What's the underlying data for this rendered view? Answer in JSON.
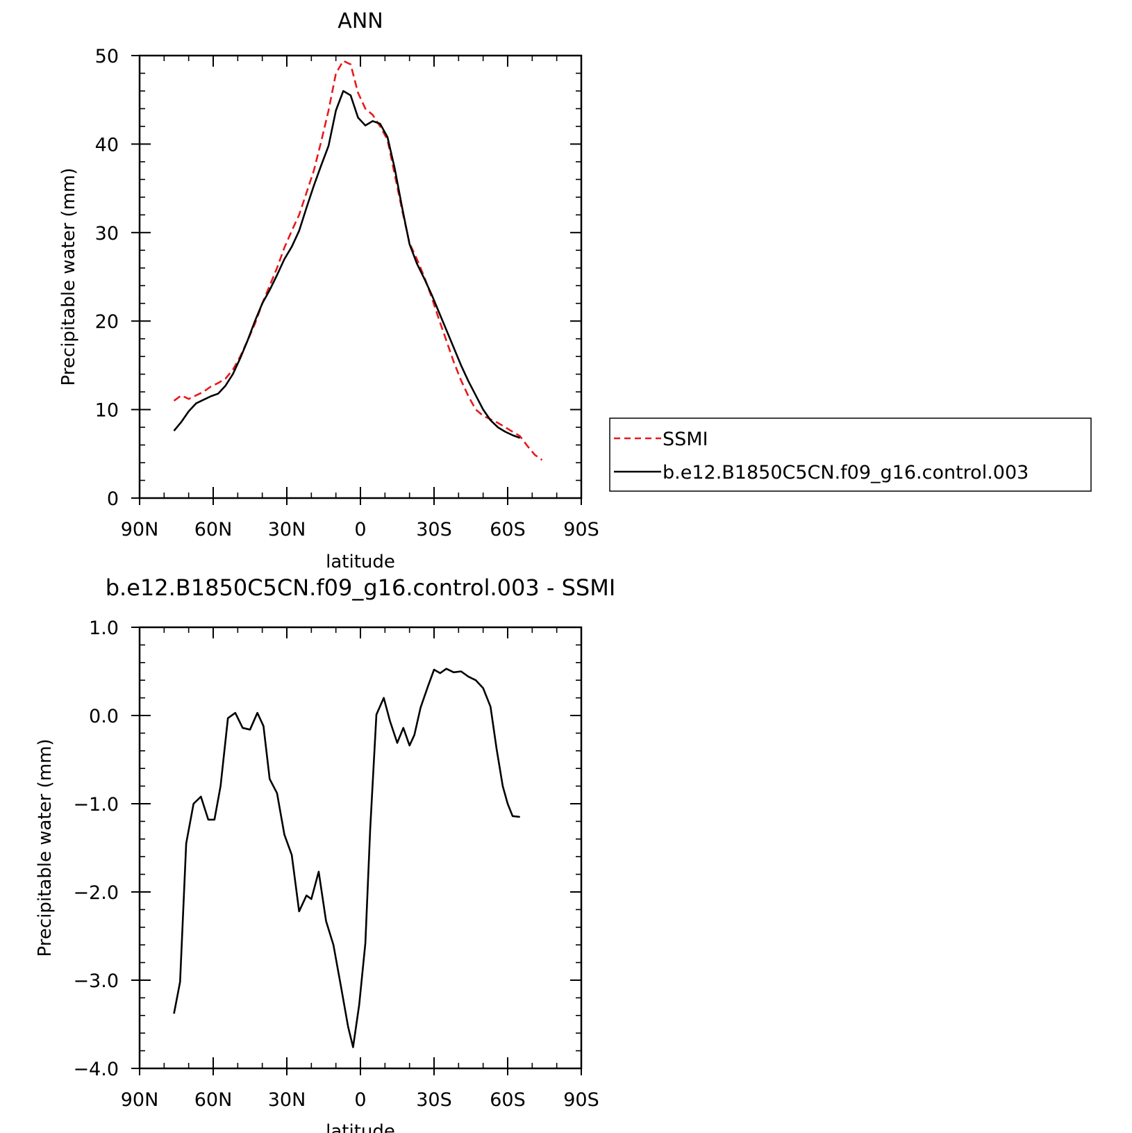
{
  "chart_data": [
    {
      "type": "line",
      "title": "ANN",
      "xlabel": "latitude",
      "ylabel": "Precipitable water (mm)",
      "xlim": [
        90,
        -90
      ],
      "ylim": [
        0,
        50
      ],
      "xticks": [
        {
          "value": 90,
          "label": "90N"
        },
        {
          "value": 60,
          "label": "60N"
        },
        {
          "value": 30,
          "label": "30N"
        },
        {
          "value": 0,
          "label": "0"
        },
        {
          "value": -30,
          "label": "30S"
        },
        {
          "value": -60,
          "label": "60S"
        },
        {
          "value": -90,
          "label": "90S"
        }
      ],
      "yticks": [
        {
          "value": 0,
          "label": "0"
        },
        {
          "value": 10,
          "label": "10"
        },
        {
          "value": 20,
          "label": "20"
        },
        {
          "value": 30,
          "label": "30"
        },
        {
          "value": 40,
          "label": "40"
        },
        {
          "value": 50,
          "label": "50"
        }
      ],
      "legend_position": "right",
      "series": [
        {
          "name": "SSMI",
          "color": "#e8191c",
          "dash": "dashed",
          "x": [
            76,
            73,
            70,
            67,
            64,
            61,
            58,
            55,
            52,
            49,
            46,
            43,
            40,
            37,
            34,
            31,
            28,
            25,
            22,
            19,
            16,
            13,
            10,
            7,
            4,
            1,
            -2,
            -5,
            -8,
            -11,
            -14,
            -17,
            -20,
            -23,
            -26,
            -29,
            -32,
            -35,
            -38,
            -41,
            -44,
            -47,
            -50,
            -53,
            -56,
            -59,
            -62,
            -65,
            -68,
            -71,
            -74
          ],
          "y": [
            11.0,
            11.6,
            11.2,
            11.6,
            12.0,
            12.6,
            13.0,
            13.5,
            14.5,
            16.0,
            17.8,
            19.7,
            22.0,
            24.0,
            26.0,
            28.3,
            30.2,
            32.0,
            34.5,
            37.0,
            40.3,
            43.8,
            48.0,
            49.4,
            49.0,
            45.8,
            44.0,
            43.3,
            42.0,
            40.5,
            36.5,
            32.5,
            28.8,
            27.0,
            25.0,
            22.7,
            20.2,
            17.8,
            15.4,
            13.3,
            11.5,
            10.0,
            9.3,
            8.9,
            8.5,
            8.0,
            7.5,
            7.0,
            5.9,
            4.9,
            4.3
          ]
        },
        {
          "name": "b.e12.B1850C5CN.f09_g16.control.003",
          "color": "#000000",
          "dash": "solid",
          "x": [
            76,
            73,
            70,
            67,
            64,
            61,
            58,
            55,
            52,
            49,
            46,
            43,
            40,
            37,
            34,
            31,
            28,
            25,
            22,
            19,
            16,
            13,
            10,
            7,
            4,
            1,
            -2,
            -5,
            -8,
            -11,
            -14,
            -17,
            -20,
            -23,
            -26,
            -29,
            -32,
            -35,
            -38,
            -41,
            -44,
            -47,
            -50,
            -53,
            -56,
            -59,
            -62,
            -65
          ],
          "y": [
            7.6,
            8.6,
            9.8,
            10.7,
            11.1,
            11.5,
            11.8,
            12.7,
            14.0,
            15.8,
            17.8,
            20.0,
            22.0,
            23.5,
            25.2,
            27.0,
            28.4,
            30.2,
            32.8,
            35.3,
            37.6,
            39.8,
            43.8,
            46.0,
            45.5,
            43.0,
            42.1,
            42.6,
            42.3,
            40.8,
            37.2,
            32.8,
            28.7,
            26.5,
            24.8,
            23.0,
            21.0,
            19.0,
            17.0,
            15.0,
            13.2,
            11.6,
            10.0,
            8.8,
            8.0,
            7.5,
            7.1,
            6.8
          ]
        }
      ]
    },
    {
      "type": "line",
      "title": "b.e12.B1850C5CN.f09_g16.control.003 - SSMI",
      "xlabel": "latitude",
      "ylabel": "Precipitable water (mm)",
      "xlim": [
        90,
        -90
      ],
      "ylim": [
        -4.0,
        1.0
      ],
      "xticks": [
        {
          "value": 90,
          "label": "90N"
        },
        {
          "value": 60,
          "label": "60N"
        },
        {
          "value": 30,
          "label": "30N"
        },
        {
          "value": 0,
          "label": "0"
        },
        {
          "value": -30,
          "label": "30S"
        },
        {
          "value": -60,
          "label": "60S"
        },
        {
          "value": -90,
          "label": "90S"
        }
      ],
      "yticks": [
        {
          "value": -4.0,
          "label": "−4.0"
        },
        {
          "value": -3.0,
          "label": "−3.0"
        },
        {
          "value": -2.0,
          "label": "−2.0"
        },
        {
          "value": -1.0,
          "label": "−1.0"
        },
        {
          "value": 0.0,
          "label": "0.0"
        },
        {
          "value": 1.0,
          "label": "1.0"
        }
      ],
      "series": [
        {
          "name": "",
          "color": "#000000",
          "dash": "solid",
          "x": [
            76,
            73.5,
            71,
            68,
            65,
            62,
            59.5,
            57,
            54,
            51,
            48,
            45,
            42,
            39.5,
            37,
            34,
            31,
            28,
            25,
            22,
            20,
            17,
            14,
            11,
            8,
            5,
            3,
            0.5,
            -2,
            -4,
            -6.5,
            -9.5,
            -12,
            -15,
            -17.5,
            -20,
            -22,
            -24.5,
            -27.5,
            -30,
            -32.5,
            -35,
            -38,
            -41,
            -44,
            -47,
            -50,
            -53,
            -55.5,
            -58,
            -60,
            -62,
            -65
          ],
          "y": [
            -3.38,
            -3.02,
            -1.45,
            -1.0,
            -0.92,
            -1.18,
            -1.18,
            -0.8,
            -0.03,
            0.03,
            -0.14,
            -0.16,
            0.03,
            -0.12,
            -0.72,
            -0.88,
            -1.35,
            -1.58,
            -2.22,
            -2.04,
            -2.08,
            -1.77,
            -2.33,
            -2.6,
            -3.06,
            -3.53,
            -3.76,
            -3.28,
            -2.58,
            -1.28,
            0.01,
            0.2,
            -0.06,
            -0.31,
            -0.14,
            -0.34,
            -0.22,
            0.09,
            0.33,
            0.52,
            0.48,
            0.53,
            0.49,
            0.5,
            0.44,
            0.4,
            0.31,
            0.1,
            -0.38,
            -0.8,
            -1.0,
            -1.14,
            -1.15
          ]
        }
      ]
    }
  ]
}
